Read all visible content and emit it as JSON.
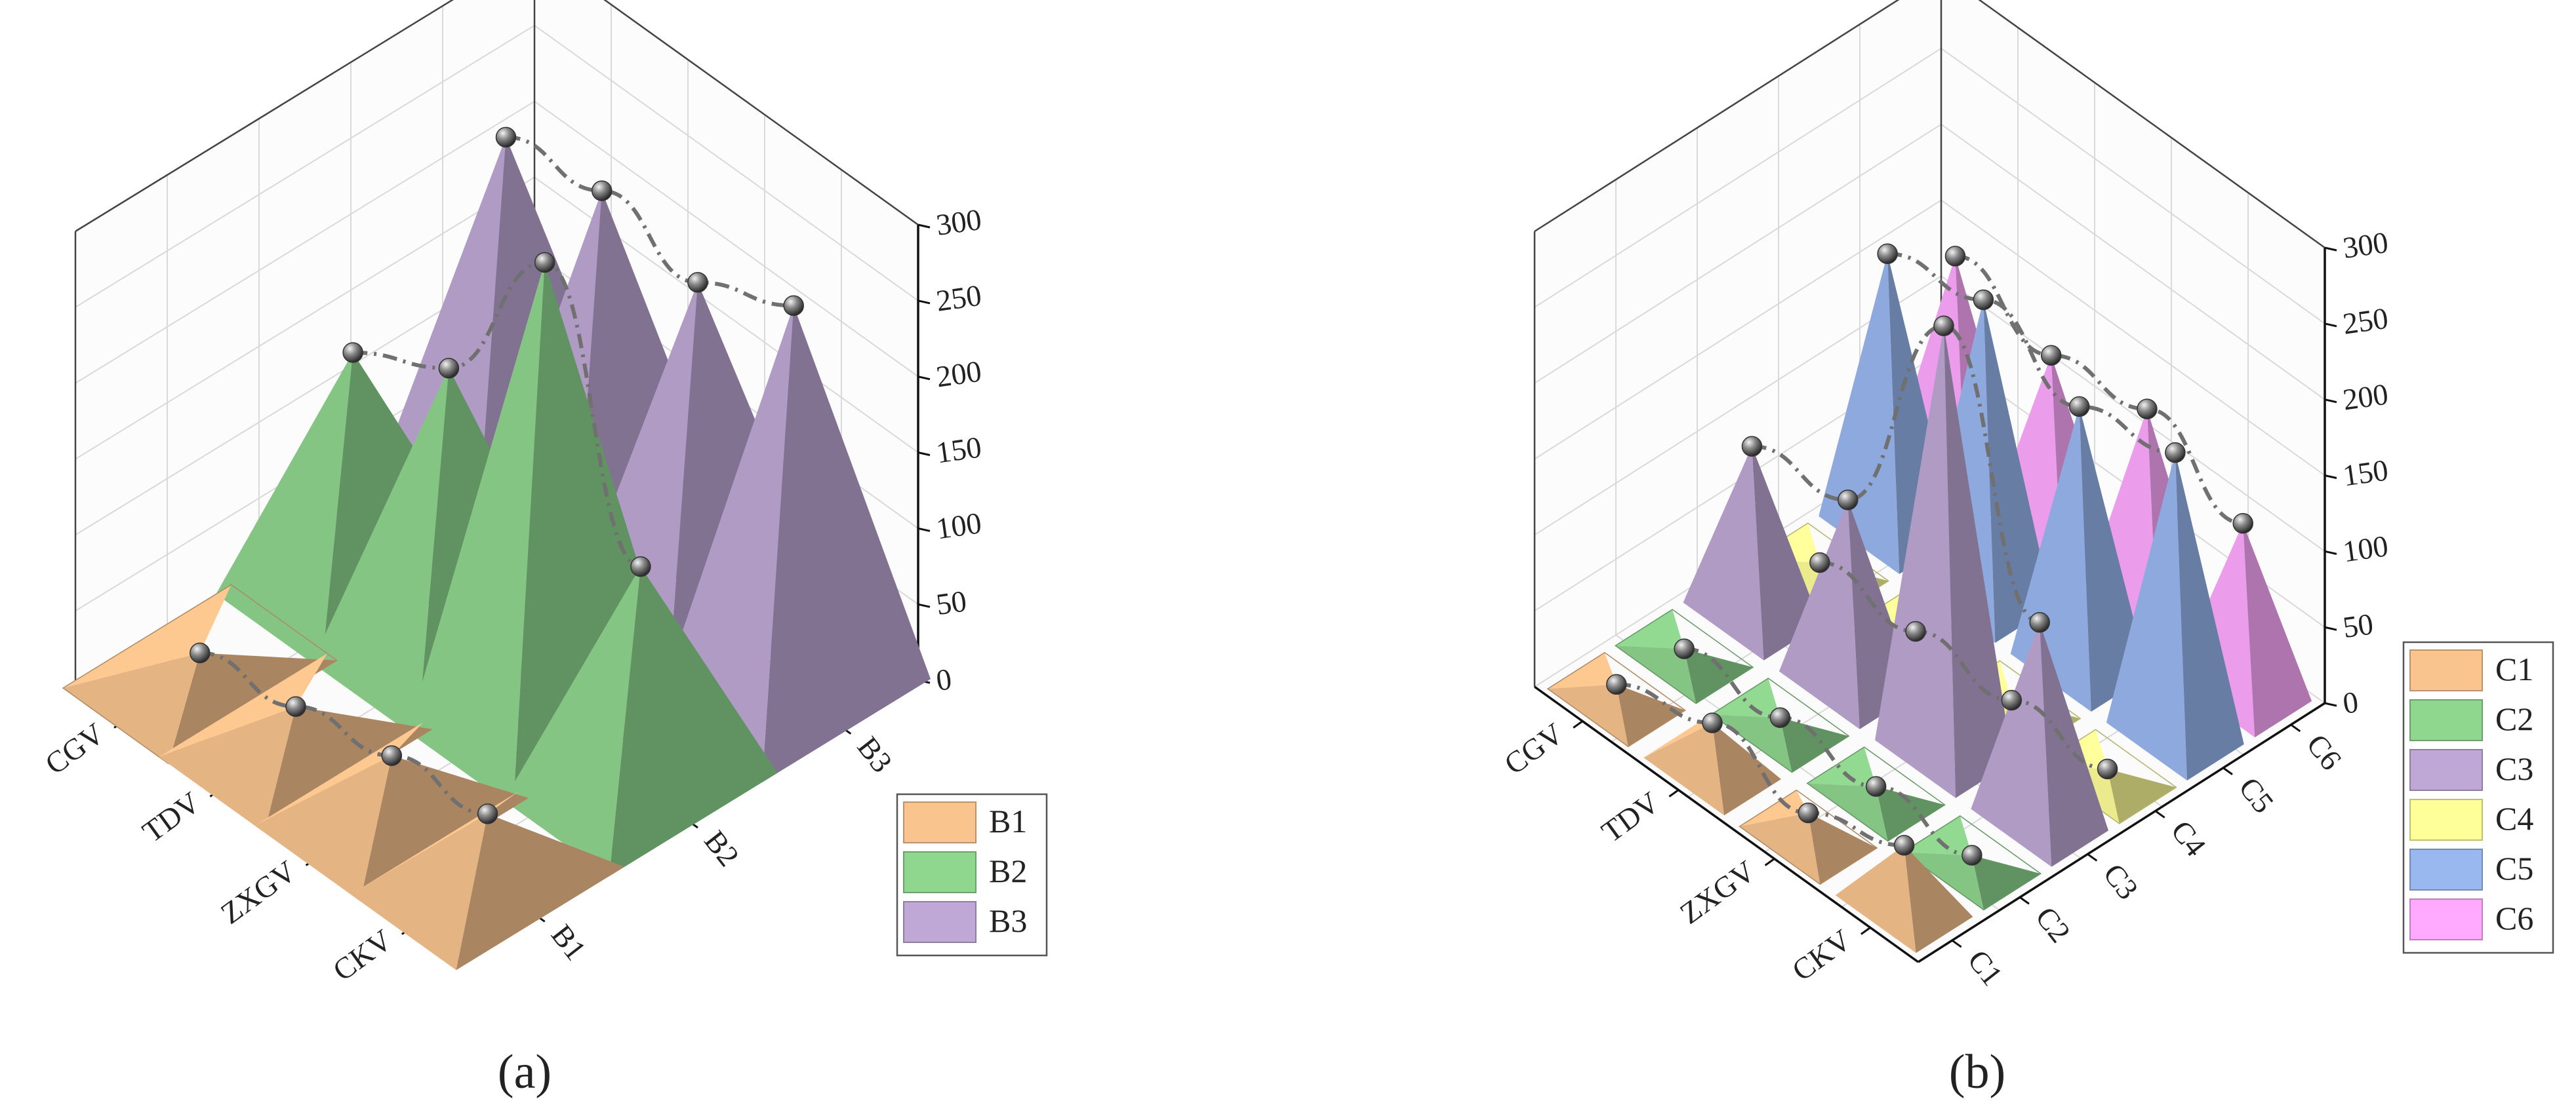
{
  "panels": [
    {
      "label": "(a)",
      "chart_data": {
        "type": "3d-pyramid",
        "title": "",
        "x_categories": [
          "CGV",
          "TDV",
          "ZXGV",
          "CKV"
        ],
        "y_categories": [
          "B1",
          "B2",
          "B3"
        ],
        "zlim": [
          0,
          300
        ],
        "z_ticks": [
          "0",
          "50",
          "100",
          "150",
          "200",
          "250",
          "300"
        ],
        "grid": true,
        "legend_position": "right",
        "series": [
          {
            "name": "B1",
            "color": "#f9c48e",
            "values": [
              14,
              24,
              37,
              44
            ]
          },
          {
            "name": "B2",
            "color": "#8fd68f",
            "values": [
              150,
              185,
              300,
              145
            ]
          },
          {
            "name": "B3",
            "color": "#bfa8d6",
            "values": [
              230,
              240,
              225,
              255
            ]
          }
        ]
      }
    },
    {
      "label": "(b)",
      "chart_data": {
        "type": "3d-pyramid",
        "title": "",
        "x_categories": [
          "CGV",
          "TDV",
          "ZXGV",
          "CKV"
        ],
        "y_categories": [
          "C1",
          "C2",
          "C3",
          "C4",
          "C5",
          "C6"
        ],
        "zlim": [
          0,
          300
        ],
        "z_ticks": [
          "0",
          "50",
          "100",
          "150",
          "200",
          "250",
          "300"
        ],
        "grid": true,
        "legend_position": "right",
        "series": [
          {
            "name": "C1",
            "color": "#f9c48e",
            "values": [
              10,
              30,
              16,
              40
            ]
          },
          {
            "name": "C2",
            "color": "#8fd68f",
            "values": [
              5,
              5,
              5,
              5
            ]
          },
          {
            "name": "C3",
            "color": "#bfa8d6",
            "values": [
              110,
              120,
              280,
              130
            ]
          },
          {
            "name": "C4",
            "color": "#ffff99",
            "values": [
              5,
              5,
              5,
              5
            ]
          },
          {
            "name": "C5",
            "color": "#99b8f0",
            "values": [
              180,
              195,
              170,
              185
            ]
          },
          {
            "name": "C6",
            "color": "#ffaaff",
            "values": [
              150,
              130,
              140,
              110
            ]
          }
        ]
      }
    }
  ]
}
